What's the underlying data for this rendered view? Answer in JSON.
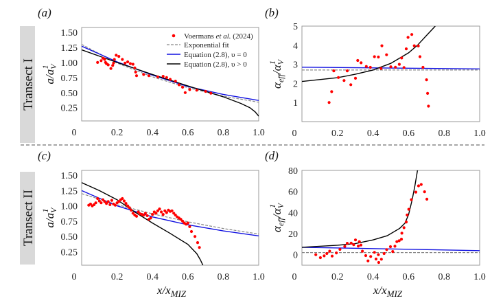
{
  "figure": {
    "transects": [
      "Transect I",
      "Transect II"
    ],
    "xlabel": {
      "main": "x/x",
      "sub": "MIZ"
    },
    "legend": {
      "data_prefix": "Voermans ",
      "data_italic": "et al.",
      "data_suffix": " (2024)",
      "exp": "Exponential fit",
      "eq0": "Equation (2.8), υ = 0",
      "eqpos": "Equation (2.8), υ > 0",
      "placement": "top-right of panel (a)"
    },
    "colors": {
      "data": "#ff0000",
      "exp": "#888888",
      "eq0": "#1010e0",
      "eqpos": "#000000"
    }
  },
  "chart_data": [
    {
      "panel": "(a)",
      "type": "scatter+line",
      "ylabel": {
        "main": "a/a",
        "sub": "V",
        "sup": "1"
      },
      "xlim": [
        0,
        1
      ],
      "ylim": [
        0.03,
        1.58
      ],
      "xticks": [
        "0",
        "0.2",
        "0.4",
        "0.6",
        "0.8",
        "1.0"
      ],
      "yticks": [
        "0.25",
        "0.50",
        "0.75",
        "1.00",
        "1.25",
        "1.50"
      ],
      "points": [
        [
          0.09,
          1.0
        ],
        [
          0.11,
          1.03
        ],
        [
          0.12,
          1.07
        ],
        [
          0.13,
          1.05
        ],
        [
          0.135,
          1.0
        ],
        [
          0.14,
          0.98
        ],
        [
          0.15,
          0.96
        ],
        [
          0.165,
          0.9
        ],
        [
          0.175,
          0.95
        ],
        [
          0.18,
          0.99
        ],
        [
          0.185,
          1.05
        ],
        [
          0.195,
          1.12
        ],
        [
          0.21,
          1.1
        ],
        [
          0.23,
          1.05
        ],
        [
          0.245,
          0.99
        ],
        [
          0.26,
          1.01
        ],
        [
          0.275,
          0.98
        ],
        [
          0.29,
          0.97
        ],
        [
          0.3,
          0.91
        ],
        [
          0.305,
          0.84
        ],
        [
          0.31,
          0.78
        ],
        [
          0.35,
          0.8
        ],
        [
          0.38,
          0.78
        ],
        [
          0.43,
          0.76
        ],
        [
          0.46,
          0.77
        ],
        [
          0.48,
          0.75
        ],
        [
          0.5,
          0.72
        ],
        [
          0.53,
          0.69
        ],
        [
          0.55,
          0.63
        ],
        [
          0.57,
          0.59
        ],
        [
          0.585,
          0.5
        ],
        [
          0.61,
          0.55
        ],
        [
          0.65,
          0.54
        ],
        [
          0.7,
          0.52
        ],
        [
          0.73,
          0.49
        ]
      ],
      "exp": [
        [
          0,
          1.3
        ],
        [
          0.2,
          0.99
        ],
        [
          0.4,
          0.76
        ],
        [
          0.6,
          0.58
        ],
        [
          0.8,
          0.44
        ],
        [
          1,
          0.34
        ]
      ],
      "eq0": [
        [
          0,
          1.27
        ],
        [
          0.2,
          1.01
        ],
        [
          0.4,
          0.79
        ],
        [
          0.6,
          0.6
        ],
        [
          0.8,
          0.47
        ],
        [
          1,
          0.37
        ]
      ],
      "eqpos": [
        [
          0,
          1.21
        ],
        [
          0.2,
          1.0
        ],
        [
          0.4,
          0.8
        ],
        [
          0.6,
          0.61
        ],
        [
          0.8,
          0.43
        ],
        [
          0.9,
          0.32
        ],
        [
          0.95,
          0.25
        ],
        [
          0.98,
          0.18
        ],
        [
          1,
          0.11
        ]
      ]
    },
    {
      "panel": "(b)",
      "type": "scatter+line",
      "ylabel": {
        "main": "α",
        "sub": "eff",
        "mid": "/α",
        "sub2": "V",
        "sup": "1"
      },
      "xlim": [
        0,
        1
      ],
      "ylim": [
        0,
        5
      ],
      "xticks": [
        "0",
        "0.2",
        "0.4",
        "0.6",
        "0.8",
        "1.0"
      ],
      "yticks": [
        "1",
        "2",
        "3",
        "4",
        "5"
      ],
      "points": [
        [
          0.153,
          1.0
        ],
        [
          0.167,
          1.57
        ],
        [
          0.179,
          2.66
        ],
        [
          0.205,
          2.31
        ],
        [
          0.237,
          2.15
        ],
        [
          0.255,
          2.66
        ],
        [
          0.275,
          1.93
        ],
        [
          0.301,
          2.27
        ],
        [
          0.314,
          3.2
        ],
        [
          0.333,
          3.08
        ],
        [
          0.362,
          2.89
        ],
        [
          0.385,
          2.84
        ],
        [
          0.408,
          3.4
        ],
        [
          0.43,
          3.38
        ],
        [
          0.445,
          2.78
        ],
        [
          0.45,
          3.97
        ],
        [
          0.476,
          3.5
        ],
        [
          0.5,
          2.87
        ],
        [
          0.526,
          2.85
        ],
        [
          0.548,
          3.0
        ],
        [
          0.561,
          3.33
        ],
        [
          0.574,
          2.83
        ],
        [
          0.587,
          3.81
        ],
        [
          0.597,
          4.41
        ],
        [
          0.618,
          4.56
        ],
        [
          0.632,
          3.97
        ],
        [
          0.655,
          3.96
        ],
        [
          0.664,
          3.4
        ],
        [
          0.681,
          2.84
        ],
        [
          0.701,
          2.19
        ],
        [
          0.707,
          1.48
        ],
        [
          0.712,
          0.81
        ]
      ],
      "exp": [
        [
          0,
          2.7
        ],
        [
          1,
          2.7
        ]
      ],
      "eq0": [
        [
          0,
          2.85
        ],
        [
          1,
          2.76
        ]
      ],
      "eqpos": [
        [
          0,
          2.1
        ],
        [
          0.1,
          2.2
        ],
        [
          0.2,
          2.3
        ],
        [
          0.3,
          2.48
        ],
        [
          0.4,
          2.7
        ],
        [
          0.5,
          3.05
        ],
        [
          0.6,
          3.6
        ],
        [
          0.65,
          4.0
        ],
        [
          0.7,
          4.5
        ],
        [
          0.75,
          5.0
        ]
      ]
    },
    {
      "panel": "(c)",
      "type": "scatter+line",
      "ylabel": {
        "main": "a/a",
        "sub": "V",
        "sup": "1"
      },
      "xlabel": "x/x_MIZ",
      "xlim": [
        0,
        1
      ],
      "ylim": [
        0.03,
        1.58
      ],
      "xticks": [
        "0",
        "0.2",
        "0.4",
        "0.6",
        "0.8",
        "1.0"
      ],
      "yticks": [
        "0.25",
        "0.50",
        "0.75",
        "1.00",
        "1.25",
        "1.50"
      ],
      "points": [
        [
          0.04,
          1.01
        ],
        [
          0.05,
          1.03
        ],
        [
          0.06,
          1.0
        ],
        [
          0.07,
          1.02
        ],
        [
          0.08,
          1.05
        ],
        [
          0.09,
          1.12
        ],
        [
          0.1,
          1.08
        ],
        [
          0.11,
          1.05
        ],
        [
          0.12,
          1.1
        ],
        [
          0.13,
          1.07
        ],
        [
          0.14,
          1.04
        ],
        [
          0.15,
          1.07
        ],
        [
          0.16,
          1.02
        ],
        [
          0.17,
          1.09
        ],
        [
          0.18,
          1.03
        ],
        [
          0.19,
          1.01
        ],
        [
          0.2,
          1.05
        ],
        [
          0.21,
          1.07
        ],
        [
          0.22,
          1.1
        ],
        [
          0.23,
          1.12
        ],
        [
          0.24,
          1.08
        ],
        [
          0.25,
          1.04
        ],
        [
          0.26,
          1.0
        ],
        [
          0.27,
          0.97
        ],
        [
          0.28,
          0.93
        ],
        [
          0.29,
          0.88
        ],
        [
          0.3,
          0.85
        ],
        [
          0.31,
          0.83
        ],
        [
          0.32,
          0.9
        ],
        [
          0.33,
          0.87
        ],
        [
          0.34,
          0.86
        ],
        [
          0.35,
          0.85
        ],
        [
          0.36,
          0.88
        ],
        [
          0.37,
          0.84
        ],
        [
          0.38,
          0.78
        ],
        [
          0.39,
          0.8
        ],
        [
          0.4,
          0.86
        ],
        [
          0.41,
          0.9
        ],
        [
          0.42,
          0.88
        ],
        [
          0.43,
          0.92
        ],
        [
          0.44,
          0.95
        ],
        [
          0.45,
          0.9
        ],
        [
          0.46,
          0.86
        ],
        [
          0.47,
          0.92
        ],
        [
          0.48,
          0.89
        ],
        [
          0.49,
          0.93
        ],
        [
          0.5,
          0.91
        ],
        [
          0.51,
          0.92
        ],
        [
          0.52,
          0.88
        ],
        [
          0.53,
          0.85
        ],
        [
          0.54,
          0.82
        ],
        [
          0.55,
          0.8
        ],
        [
          0.56,
          0.78
        ],
        [
          0.57,
          0.75
        ],
        [
          0.58,
          0.72
        ],
        [
          0.59,
          0.7
        ],
        [
          0.6,
          0.72
        ],
        [
          0.61,
          0.66
        ],
        [
          0.62,
          0.58
        ],
        [
          0.64,
          0.5
        ],
        [
          0.655,
          0.4
        ],
        [
          0.665,
          0.32
        ]
      ],
      "exp": [
        [
          0,
          1.2
        ],
        [
          0.2,
          1.02
        ],
        [
          0.4,
          0.87
        ],
        [
          0.6,
          0.74
        ],
        [
          0.8,
          0.63
        ],
        [
          1,
          0.54
        ]
      ],
      "eq0": [
        [
          0,
          1.25
        ],
        [
          0.2,
          1.0
        ],
        [
          0.4,
          0.82
        ],
        [
          0.6,
          0.69
        ],
        [
          0.8,
          0.59
        ],
        [
          1,
          0.51
        ]
      ],
      "eqpos": [
        [
          0,
          1.38
        ],
        [
          0.1,
          1.25
        ],
        [
          0.2,
          1.1
        ],
        [
          0.3,
          0.9
        ],
        [
          0.4,
          0.72
        ],
        [
          0.5,
          0.55
        ],
        [
          0.6,
          0.37
        ],
        [
          0.65,
          0.22
        ],
        [
          0.67,
          0.12
        ],
        [
          0.685,
          0.03
        ]
      ]
    },
    {
      "panel": "(d)",
      "type": "scatter+line",
      "ylabel": {
        "main": "α",
        "sub": "eff",
        "mid": "/α",
        "sub2": "V",
        "sup": "1"
      },
      "xlabel": "x/x_MIZ",
      "xlim": [
        0,
        1
      ],
      "ylim": [
        -10,
        80
      ],
      "xticks": [
        "0",
        "0.2",
        "0.4",
        "0.6",
        "0.8",
        "1.0"
      ],
      "yticks": [
        "0",
        "20",
        "40",
        "60",
        "80"
      ],
      "points": [
        [
          0.078,
          0
        ],
        [
          0.104,
          -2.8
        ],
        [
          0.125,
          -1.1
        ],
        [
          0.14,
          1.1
        ],
        [
          0.156,
          3.3
        ],
        [
          0.17,
          -1.3
        ],
        [
          0.194,
          1.7
        ],
        [
          0.214,
          5
        ],
        [
          0.241,
          7.8
        ],
        [
          0.255,
          10.8
        ],
        [
          0.277,
          11
        ],
        [
          0.291,
          9.5
        ],
        [
          0.301,
          14
        ],
        [
          0.317,
          8.2
        ],
        [
          0.323,
          12.4
        ],
        [
          0.332,
          9.1
        ],
        [
          0.34,
          3.3
        ],
        [
          0.359,
          -0.9
        ],
        [
          0.372,
          -5.9
        ],
        [
          0.387,
          -1.7
        ],
        [
          0.408,
          2.2
        ],
        [
          0.417,
          -4.1
        ],
        [
          0.43,
          0
        ],
        [
          0.432,
          -7.4
        ],
        [
          0.447,
          -4.3
        ],
        [
          0.462,
          1.1
        ],
        [
          0.477,
          4.8
        ],
        [
          0.498,
          7.6
        ],
        [
          0.511,
          3.0
        ],
        [
          0.523,
          8.0
        ],
        [
          0.534,
          12.4
        ],
        [
          0.547,
          13.2
        ],
        [
          0.56,
          14.7
        ],
        [
          0.562,
          20.4
        ],
        [
          0.574,
          25.6
        ],
        [
          0.587,
          31
        ],
        [
          0.592,
          37.7
        ],
        [
          0.601,
          43.1
        ],
        [
          0.616,
          52.2
        ],
        [
          0.641,
          59.4
        ],
        [
          0.656,
          65.3
        ],
        [
          0.671,
          66.6
        ],
        [
          0.69,
          59.7
        ],
        [
          0.703,
          52.7
        ]
      ],
      "exp": [
        [
          0,
          2.0
        ],
        [
          1,
          2.0
        ]
      ],
      "eq0": [
        [
          0,
          7.0
        ],
        [
          1,
          3.8
        ]
      ],
      "eqpos": [
        [
          0,
          7
        ],
        [
          0.1,
          8
        ],
        [
          0.2,
          9
        ],
        [
          0.3,
          10.5
        ],
        [
          0.4,
          14
        ],
        [
          0.48,
          18
        ],
        [
          0.55,
          25
        ],
        [
          0.58,
          30
        ],
        [
          0.6,
          38
        ],
        [
          0.62,
          52
        ],
        [
          0.635,
          65
        ],
        [
          0.645,
          75
        ],
        [
          0.65,
          80
        ]
      ]
    }
  ]
}
